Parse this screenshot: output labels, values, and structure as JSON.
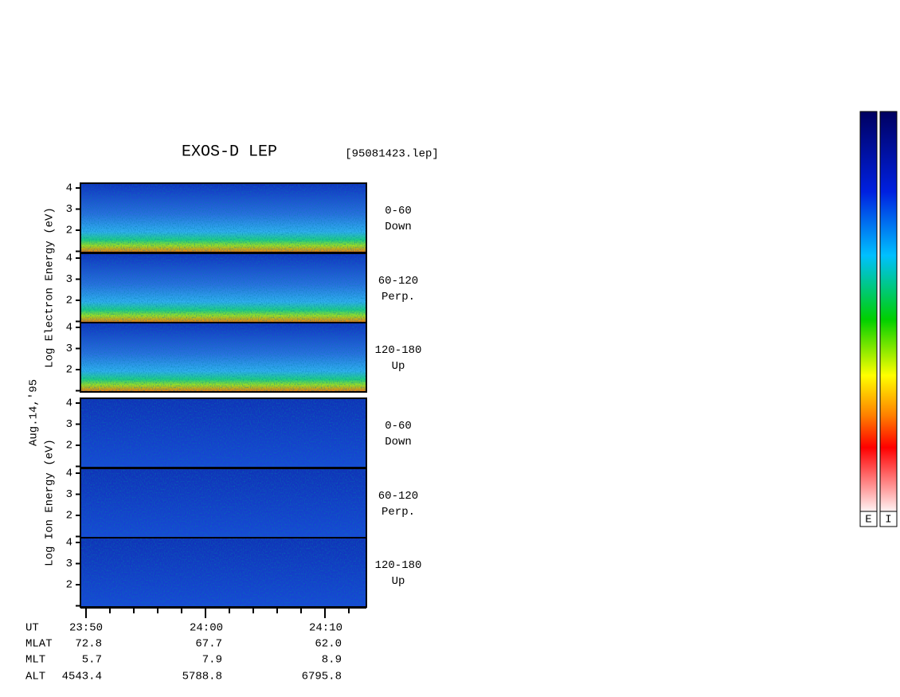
{
  "title": "EXOS-D LEP",
  "file": "[95081423.lep]",
  "date": "Aug.14,'95",
  "electron_axis_label": "Log Electron Energy (eV)",
  "ion_axis_label": "Log Ion Energy (eV)",
  "yticks": [
    2,
    3,
    4
  ],
  "panels": [
    {
      "angle": "0-60",
      "direction": "Down"
    },
    {
      "angle": "60-120",
      "direction": "Perp."
    },
    {
      "angle": "120-180",
      "direction": "Up"
    },
    {
      "angle": "0-60",
      "direction": "Down"
    },
    {
      "angle": "60-120",
      "direction": "Perp."
    },
    {
      "angle": "120-180",
      "direction": "Up"
    }
  ],
  "time_axis": [
    {
      "name": "UT",
      "values": [
        "23:50",
        "24:00",
        "24:10"
      ]
    },
    {
      "name": "MLAT",
      "values": [
        "72.8",
        "67.7",
        "62.0"
      ]
    },
    {
      "name": "MLT",
      "values": [
        "5.7",
        "7.9",
        "8.9"
      ]
    },
    {
      "name": "ALT",
      "values": [
        "4543.4",
        "5788.8",
        "6795.8"
      ]
    }
  ],
  "colorbars": [
    "E",
    "I"
  ]
}
